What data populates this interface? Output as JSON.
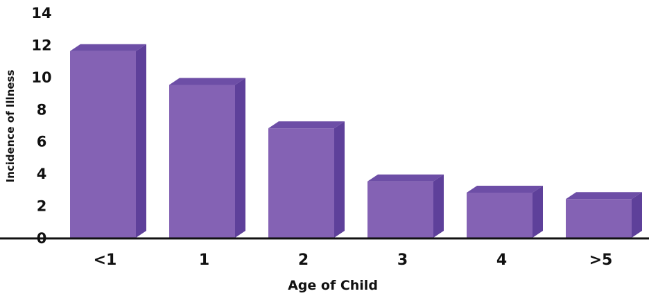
{
  "chart_data": {
    "type": "bar",
    "xlabel": "Age of Child",
    "ylabel": "Incidence of Illness",
    "ylim": [
      0,
      14
    ],
    "yticks": [
      0,
      2,
      4,
      6,
      8,
      10,
      12,
      14
    ],
    "categories": [
      "<1",
      "1",
      "2",
      "3",
      "4",
      ">5"
    ],
    "values": [
      11.6,
      9.5,
      6.8,
      3.5,
      2.8,
      2.4
    ],
    "grid": false,
    "style": "3d"
  },
  "colors": {
    "bar_front": "#8462b4",
    "bar_top": "#6d4ea6",
    "bar_side": "#5e409a",
    "axis": "#111111"
  }
}
